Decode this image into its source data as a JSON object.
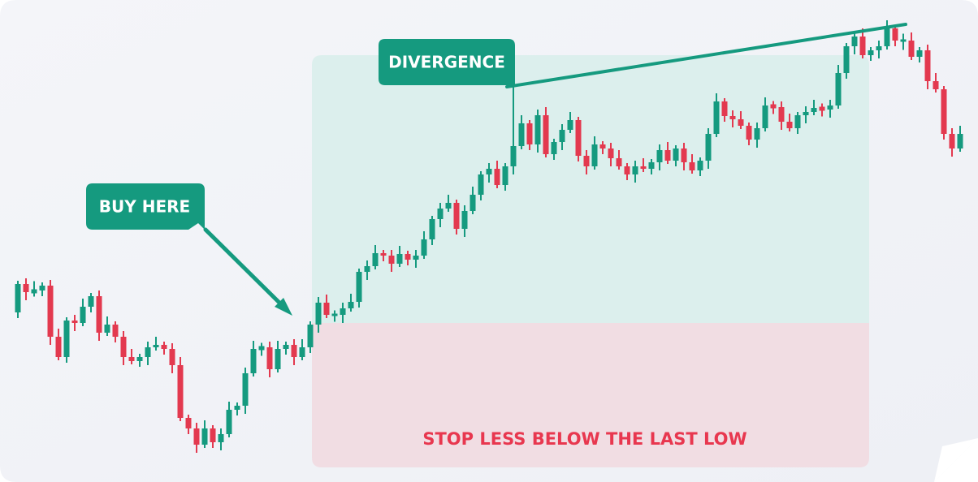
{
  "labels": {
    "buy": "BUY HERE",
    "divergence": "DIVERGENCE",
    "stop": "STOP LESS BELOW THE LAST LOW"
  }
}
